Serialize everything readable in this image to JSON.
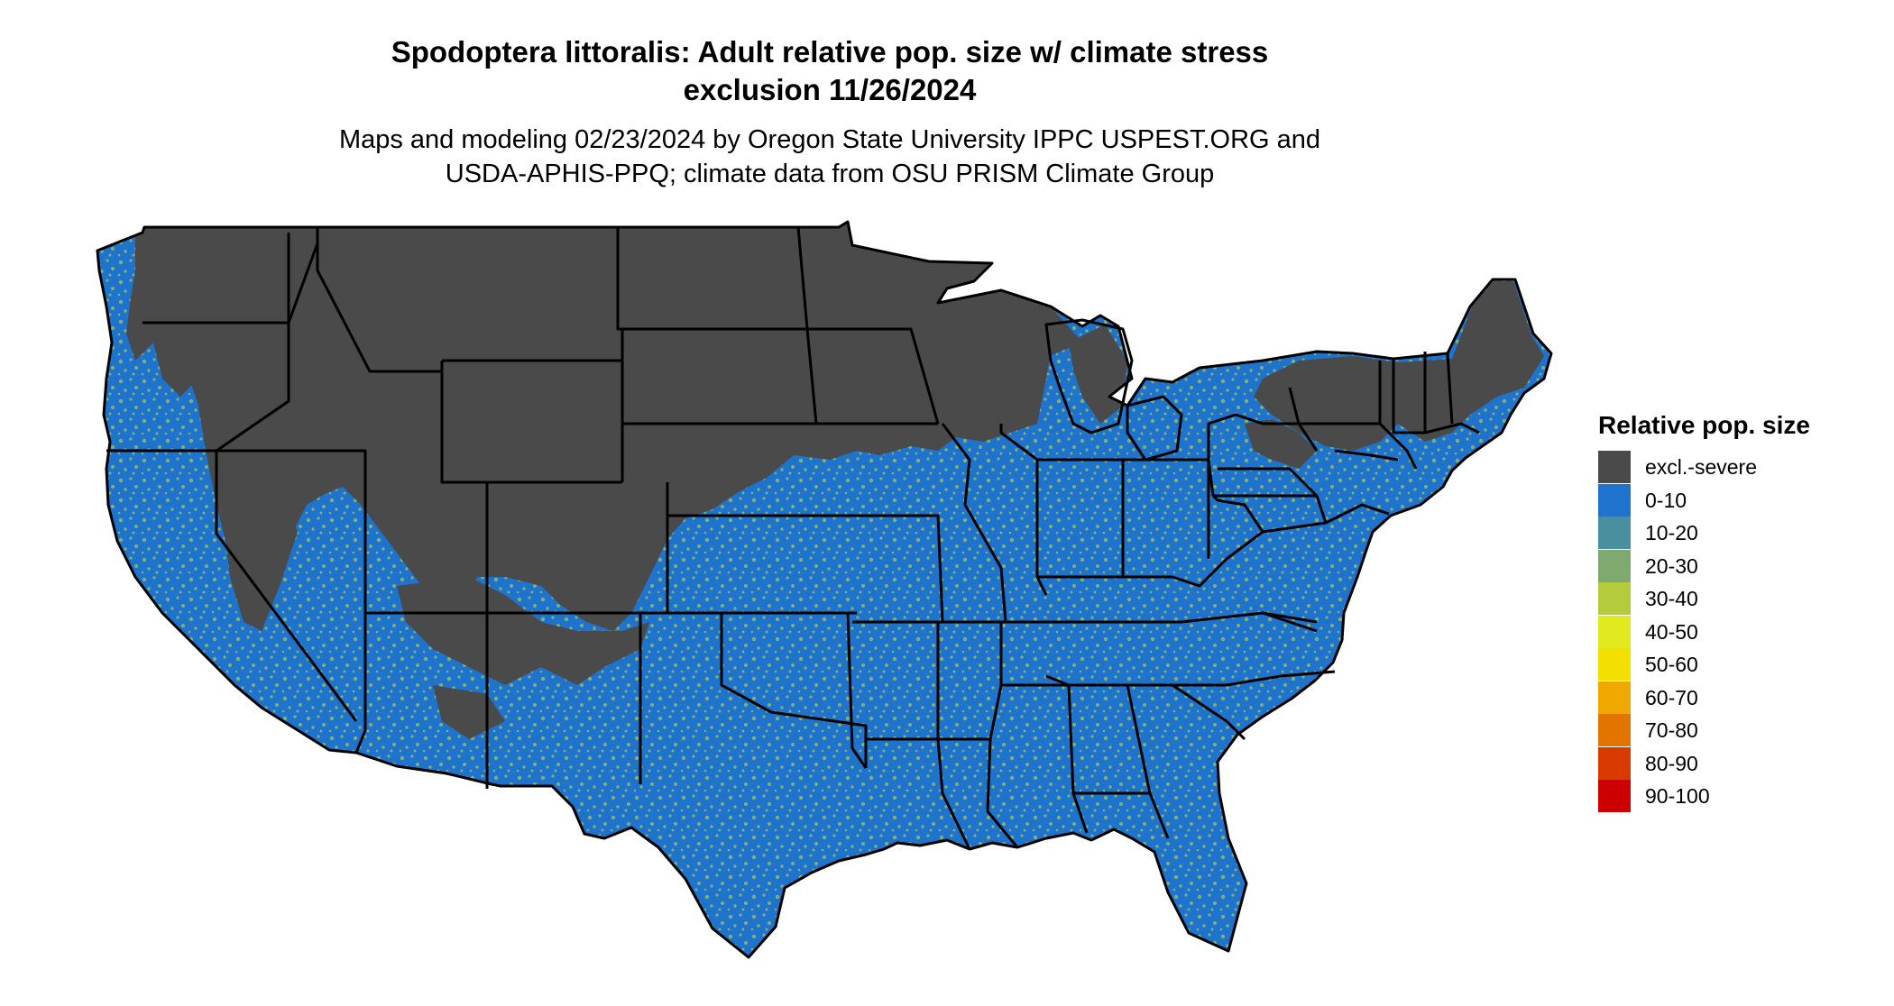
{
  "title_line1": "Spodoptera littoralis: Adult relative pop. size w/ climate stress",
  "title_line2": "exclusion 11/26/2024",
  "subtitle_line1": "Maps and modeling 02/23/2024 by Oregon State University IPPC USPEST.ORG and",
  "subtitle_line2": "USDA-APHIS-PPQ; climate data from OSU PRISM Climate Group",
  "legend": {
    "title": "Relative pop. size",
    "items": [
      {
        "label": "excl.-severe",
        "color": "#4a4a4a"
      },
      {
        "label": "0-10",
        "color": "#1e73cc"
      },
      {
        "label": "10-20",
        "color": "#4a8fa0"
      },
      {
        "label": "20-30",
        "color": "#7eaa70"
      },
      {
        "label": "30-40",
        "color": "#b4cc3c"
      },
      {
        "label": "40-50",
        "color": "#e0ea1e"
      },
      {
        "label": "50-60",
        "color": "#f4e000"
      },
      {
        "label": "60-70",
        "color": "#eea800"
      },
      {
        "label": "70-80",
        "color": "#e27400"
      },
      {
        "label": "80-90",
        "color": "#d83a00"
      },
      {
        "label": "90-100",
        "color": "#cc0000"
      }
    ]
  },
  "map_colors": {
    "excluded": "#4a4a4a",
    "low": "#1e73cc",
    "speckle": "#a6c25a",
    "border": "#000000"
  }
}
